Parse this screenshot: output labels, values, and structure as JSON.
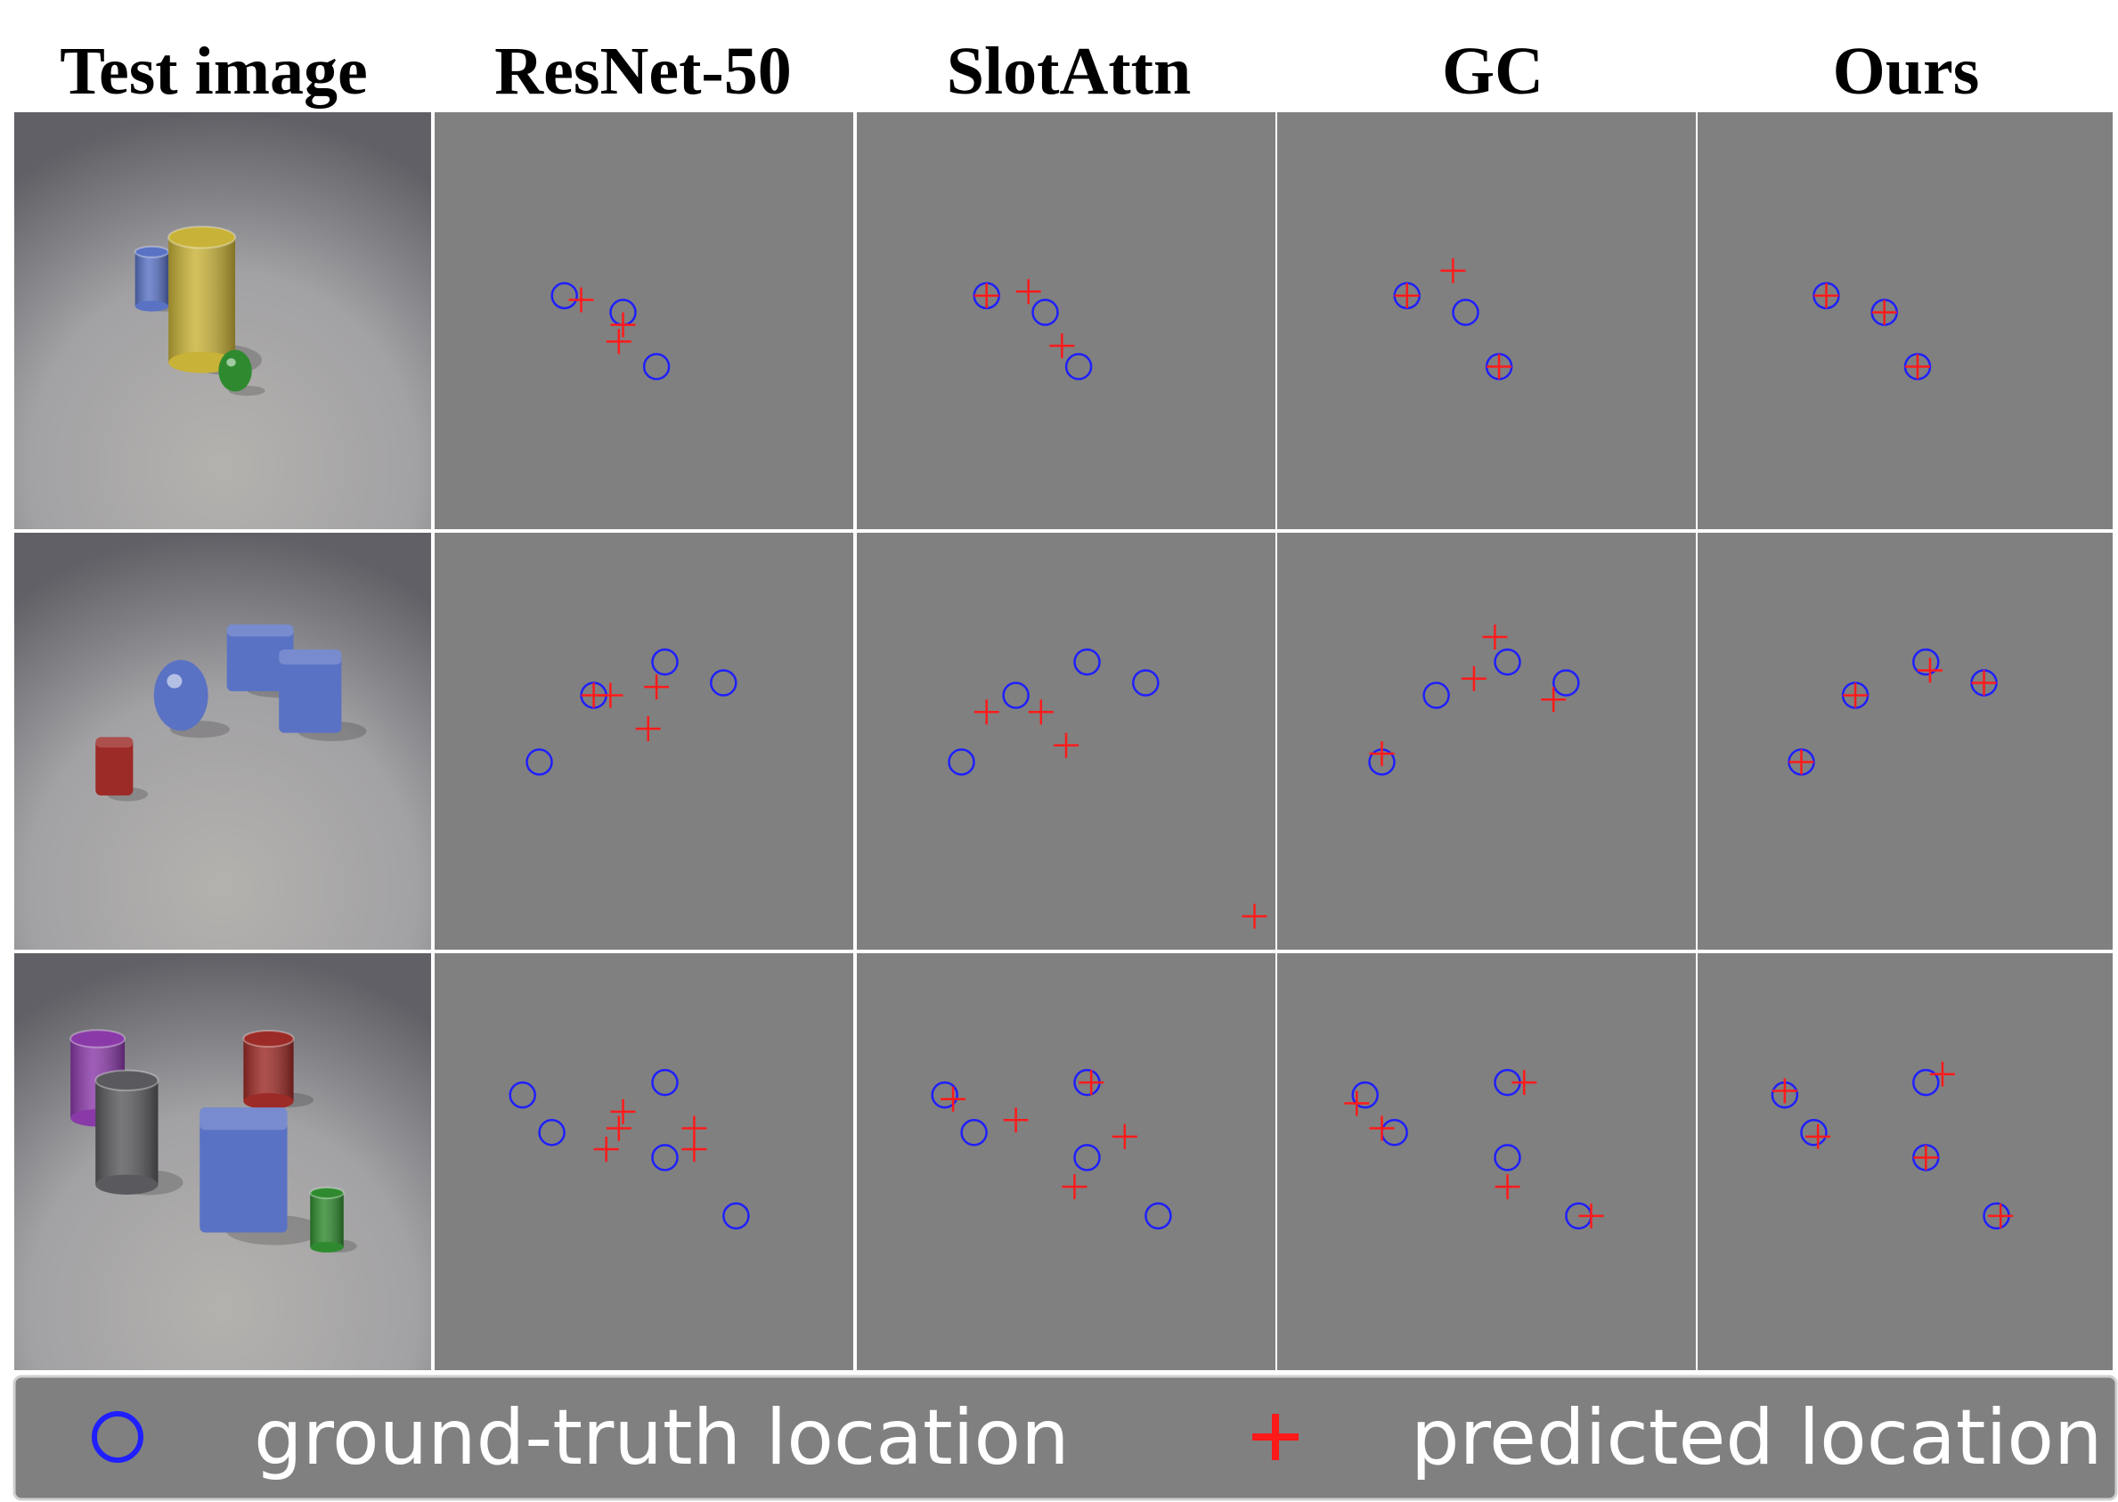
{
  "columns": [
    "Test image",
    "ResNet-50",
    "SlotAttn",
    "GC",
    "Ours"
  ],
  "legend": {
    "gt_label": "ground-truth location",
    "pred_label": "predicted location",
    "gt_icon": "blue-circle-icon",
    "pred_icon": "red-plus-icon"
  },
  "colors": {
    "panel_bg": "#808080",
    "ground_truth": "#1f1fff",
    "prediction": "#ff1a1a",
    "grid_line": "#ffffff"
  },
  "scenes": [
    {
      "objects": [
        {
          "shape": "cylinder",
          "color": "blue"
        },
        {
          "shape": "cylinder",
          "color": "yellow",
          "material": "metal"
        },
        {
          "shape": "sphere",
          "color": "green",
          "material": "metal"
        }
      ]
    },
    {
      "objects": [
        {
          "shape": "cube",
          "color": "blue"
        },
        {
          "shape": "cube",
          "color": "blue"
        },
        {
          "shape": "sphere",
          "color": "blue",
          "material": "metal"
        },
        {
          "shape": "cube",
          "color": "red"
        }
      ]
    },
    {
      "objects": [
        {
          "shape": "cylinder",
          "color": "purple"
        },
        {
          "shape": "cylinder",
          "color": "gray",
          "material": "metal"
        },
        {
          "shape": "cylinder",
          "color": "red",
          "material": "metal"
        },
        {
          "shape": "cube",
          "color": "blue"
        },
        {
          "shape": "cylinder",
          "color": "green"
        }
      ]
    }
  ],
  "chart_data": {
    "type": "scatter",
    "xlim": [
      0,
      1
    ],
    "ylim": [
      0,
      1
    ],
    "rows": [
      {
        "ground_truth": [
          [
            0.31,
            0.44
          ],
          [
            0.45,
            0.48
          ],
          [
            0.53,
            0.61
          ]
        ],
        "predictions": {
          "ResNet-50": [
            [
              0.35,
              0.45
            ],
            [
              0.45,
              0.51
            ],
            [
              0.44,
              0.55
            ]
          ],
          "SlotAttn": [
            [
              0.31,
              0.44
            ],
            [
              0.41,
              0.43
            ],
            [
              0.49,
              0.56
            ]
          ],
          "GC": [
            [
              0.31,
              0.44
            ],
            [
              0.42,
              0.38
            ],
            [
              0.53,
              0.61
            ]
          ],
          "Ours": [
            [
              0.31,
              0.44
            ],
            [
              0.45,
              0.48
            ],
            [
              0.53,
              0.61
            ]
          ]
        }
      },
      {
        "ground_truth": [
          [
            0.25,
            0.55
          ],
          [
            0.38,
            0.39
          ],
          [
            0.55,
            0.31
          ],
          [
            0.69,
            0.36
          ]
        ],
        "predictions": {
          "ResNet-50": [
            [
              0.38,
              0.39
            ],
            [
              0.42,
              0.39
            ],
            [
              0.53,
              0.37
            ],
            [
              0.51,
              0.47
            ]
          ],
          "SlotAttn": [
            [
              0.31,
              0.43
            ],
            [
              0.44,
              0.43
            ],
            [
              0.5,
              0.51
            ],
            [
              0.95,
              0.92
            ]
          ],
          "GC": [
            [
              0.25,
              0.53
            ],
            [
              0.47,
              0.35
            ],
            [
              0.52,
              0.25
            ],
            [
              0.66,
              0.4
            ]
          ],
          "Ours": [
            [
              0.25,
              0.55
            ],
            [
              0.38,
              0.39
            ],
            [
              0.56,
              0.33
            ],
            [
              0.69,
              0.36
            ]
          ]
        }
      },
      {
        "ground_truth": [
          [
            0.21,
            0.34
          ],
          [
            0.28,
            0.43
          ],
          [
            0.55,
            0.31
          ],
          [
            0.55,
            0.49
          ],
          [
            0.72,
            0.63
          ]
        ],
        "predictions": {
          "ResNet-50": [
            [
              0.45,
              0.38
            ],
            [
              0.44,
              0.42
            ],
            [
              0.41,
              0.47
            ],
            [
              0.62,
              0.42
            ],
            [
              0.62,
              0.47
            ]
          ],
          "SlotAttn": [
            [
              0.23,
              0.35
            ],
            [
              0.38,
              0.4
            ],
            [
              0.56,
              0.31
            ],
            [
              0.64,
              0.44
            ],
            [
              0.52,
              0.56
            ]
          ],
          "GC": [
            [
              0.19,
              0.36
            ],
            [
              0.25,
              0.42
            ],
            [
              0.59,
              0.31
            ],
            [
              0.55,
              0.56
            ],
            [
              0.75,
              0.63
            ]
          ],
          "Ours": [
            [
              0.21,
              0.33
            ],
            [
              0.29,
              0.44
            ],
            [
              0.59,
              0.29
            ],
            [
              0.55,
              0.49
            ],
            [
              0.73,
              0.63
            ]
          ]
        }
      }
    ]
  }
}
